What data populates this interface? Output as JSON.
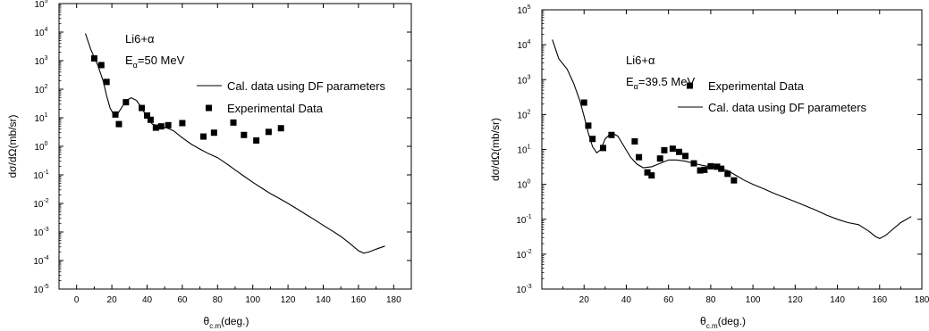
{
  "chart_data": [
    {
      "type": "scatter",
      "title": "",
      "annotation": {
        "projectile": "Li6+",
        "projectile_symbol": "α",
        "energy_prefix": "E",
        "energy_subscript": "α",
        "energy_value": "=50 MeV"
      },
      "xlabel": {
        "symbol": "θ",
        "subscript": "c.m",
        "unit": "(deg.)"
      },
      "ylabel": "dσ/dΩ(mb/sr)",
      "xlim": [
        -10,
        190
      ],
      "ylim_exp": [
        -5,
        5
      ],
      "y_scale": "log",
      "x_ticks": [
        0,
        20,
        40,
        60,
        80,
        100,
        120,
        140,
        160,
        180
      ],
      "y_tick_exponents": [
        -5,
        -4,
        -3,
        -2,
        -1,
        0,
        1,
        2,
        3,
        4,
        5
      ],
      "grid": false,
      "legend_position": "upper-right",
      "legend": [
        {
          "series": "calculated",
          "label": "Cal. data using DF parameters"
        },
        {
          "series": "experimental",
          "label": "Experimental Data"
        }
      ],
      "series": [
        {
          "id": "calculated",
          "kind": "line",
          "x": [
            5,
            8,
            12,
            15,
            17,
            19,
            21,
            23,
            25,
            28,
            31,
            34,
            37,
            40,
            43,
            47,
            51,
            55,
            60,
            65,
            70,
            75,
            80,
            85,
            90,
            95,
            100,
            105,
            110,
            115,
            120,
            125,
            130,
            135,
            140,
            145,
            150,
            155,
            160,
            163,
            166,
            170,
            175
          ],
          "y": [
            9000,
            2500,
            700,
            200,
            60,
            22,
            13,
            13,
            20,
            40,
            50,
            40,
            22,
            10,
            6,
            5,
            4.5,
            3.5,
            2,
            1.2,
            0.8,
            0.55,
            0.4,
            0.25,
            0.15,
            0.09,
            0.055,
            0.035,
            0.022,
            0.015,
            0.01,
            0.0065,
            0.0042,
            0.0027,
            0.0017,
            0.0011,
            0.0007,
            0.0004,
            0.00022,
            0.00018,
            0.0002,
            0.00025,
            0.00032
          ]
        },
        {
          "id": "experimental",
          "kind": "points",
          "x": [
            10,
            14,
            17,
            22,
            24,
            28,
            37,
            40,
            42,
            45,
            48,
            52,
            60,
            72,
            78,
            89,
            95,
            102,
            109,
            116
          ],
          "y": [
            1200,
            700,
            180,
            13,
            6,
            35,
            22,
            12,
            8.5,
            4.5,
            5,
            5.5,
            6.5,
            2.2,
            3,
            6.8,
            2.5,
            1.6,
            3.2,
            4.3
          ]
        }
      ]
    },
    {
      "type": "scatter",
      "title": "",
      "annotation": {
        "projectile": "Li6+",
        "projectile_symbol": "α",
        "energy_prefix": "E",
        "energy_subscript": "α",
        "energy_value": "=39.5 MeV"
      },
      "xlabel": {
        "symbol": "θ",
        "subscript": "c.m",
        "unit": "(deg.)"
      },
      "ylabel": "dσ/dΩ(mb/sr)",
      "xlim": [
        0,
        180
      ],
      "ylim_exp": [
        -3,
        5
      ],
      "y_scale": "log",
      "x_ticks": [
        20,
        40,
        60,
        80,
        100,
        120,
        140,
        160,
        180
      ],
      "x_tick_labels_hidden_at_edge": true,
      "y_tick_exponents": [
        -3,
        -2,
        -1,
        0,
        1,
        2,
        3,
        4,
        5
      ],
      "grid": false,
      "legend_position": "upper-right",
      "legend": [
        {
          "series": "experimental",
          "label": "Experimental Data"
        },
        {
          "series": "calculated",
          "label": "Cal. data using DF parameters"
        }
      ],
      "series": [
        {
          "id": "calculated",
          "kind": "line",
          "x": [
            5,
            8,
            12,
            15,
            18,
            20,
            22,
            24,
            26,
            28,
            30,
            33,
            36,
            39,
            42,
            45,
            48,
            52,
            56,
            60,
            64,
            68,
            72,
            76,
            80,
            84,
            88,
            92,
            96,
            100,
            105,
            110,
            115,
            120,
            125,
            130,
            135,
            140,
            145,
            150,
            155,
            158,
            160,
            163,
            166,
            170,
            175
          ],
          "y": [
            14000,
            4000,
            2000,
            800,
            250,
            90,
            30,
            12,
            8,
            10,
            20,
            30,
            24,
            12,
            6,
            3.8,
            3,
            3.2,
            4,
            5,
            5,
            4.6,
            4,
            3.5,
            3.2,
            2.9,
            2.5,
            1.8,
            1.3,
            1,
            0.75,
            0.55,
            0.42,
            0.32,
            0.24,
            0.18,
            0.13,
            0.1,
            0.08,
            0.07,
            0.045,
            0.032,
            0.028,
            0.035,
            0.05,
            0.08,
            0.12
          ]
        },
        {
          "id": "experimental",
          "kind": "points",
          "x": [
            20,
            22,
            24,
            29,
            33,
            44,
            46,
            50,
            52,
            56,
            58,
            62,
            65,
            68,
            72,
            75,
            77,
            80,
            83,
            85,
            88,
            91
          ],
          "y": [
            220,
            48,
            20,
            11,
            26,
            17,
            6,
            2.2,
            1.8,
            5.5,
            9.5,
            10.5,
            8.5,
            6.5,
            4,
            2.5,
            2.6,
            3.3,
            3.2,
            2.8,
            2,
            1.3
          ]
        }
      ]
    }
  ]
}
